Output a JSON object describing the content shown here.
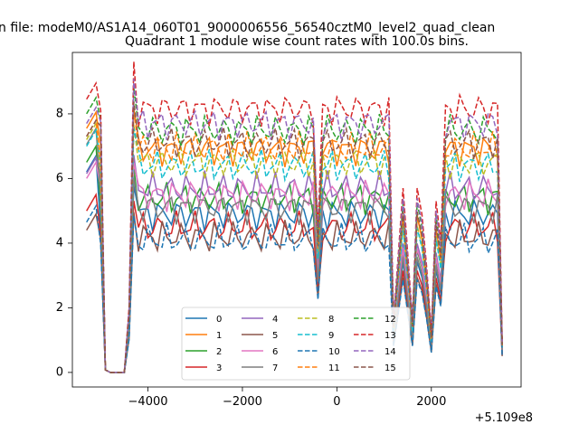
{
  "chart_data": {
    "type": "line",
    "suptitle": "n file: modeM0/AS1A14_060T01_9000006556_56540cztM0_level2_quad_clean",
    "title": "Quadrant 1 module wise count rates with 100.0s bins.",
    "xlabel": "",
    "ylabel": "",
    "x_offset_label": "+5.109e8",
    "xlim": [
      -5600,
      3900
    ],
    "ylim": [
      -0.45,
      9.9
    ],
    "xticks": [
      -4000,
      -2000,
      0,
      2000
    ],
    "xtick_labels": [
      "−4000",
      "−2000",
      "0",
      "2000"
    ],
    "yticks": [
      0,
      2,
      4,
      6,
      8
    ],
    "ytick_labels": [
      "0",
      "2",
      "4",
      "6",
      "8"
    ],
    "legend_location": "lower-center",
    "legend_columns": 4,
    "x": [
      -5300,
      -5200,
      -5100,
      -5000,
      -4900,
      -4800,
      -4700,
      -4600,
      -4500,
      -4400,
      -4300,
      -4200,
      -4100,
      -4000,
      -3900,
      -3800,
      -3700,
      -3600,
      -3500,
      -3400,
      -3300,
      -3200,
      -3100,
      -3000,
      -2900,
      -2800,
      -2700,
      -2600,
      -2500,
      -2400,
      -2300,
      -2200,
      -2100,
      -2000,
      -1900,
      -1800,
      -1700,
      -1600,
      -1500,
      -1400,
      -1300,
      -1200,
      -1100,
      -1000,
      -900,
      -800,
      -700,
      -600,
      -500,
      -400,
      -300,
      -200,
      -100,
      0,
      100,
      200,
      300,
      400,
      500,
      600,
      700,
      800,
      900,
      1000,
      1100,
      1200,
      1300,
      1400,
      1500,
      1600,
      1700,
      1800,
      1900,
      2000,
      2100,
      2200,
      2300,
      2400,
      2500,
      2600,
      2700,
      2800,
      2900,
      3000,
      3100,
      3200,
      3300,
      3400,
      3500
    ],
    "dips": {
      "-400": 0.55,
      "1200": 0.2,
      "1300": 0.45,
      "1400": 0.7,
      "1500": 0.45,
      "1600": 0.2,
      "1700": 0.7,
      "1800": 0.6,
      "1900": 0.4,
      "2000": 0.15,
      "2100": 0.65,
      "2200": 0.5,
      "3500": 0.12
    },
    "series": [
      {
        "name": "0",
        "color": "#1f77b4",
        "dash": false,
        "base": 4.9,
        "start": 6.2
      },
      {
        "name": "1",
        "color": "#ff7f0e",
        "dash": false,
        "base": 6.9,
        "start": 7.5
      },
      {
        "name": "2",
        "color": "#2ca02c",
        "dash": false,
        "base": 5.4,
        "start": 6.4
      },
      {
        "name": "3",
        "color": "#d62728",
        "dash": false,
        "base": 4.5,
        "start": 5.0
      },
      {
        "name": "4",
        "color": "#9467bd",
        "dash": false,
        "base": 5.7,
        "start": 6.1
      },
      {
        "name": "5",
        "color": "#8c564b",
        "dash": false,
        "base": 4.2,
        "start": 4.3
      },
      {
        "name": "6",
        "color": "#e377c2",
        "dash": false,
        "base": 5.5,
        "start": 6.0
      },
      {
        "name": "7",
        "color": "#7f7f7f",
        "dash": false,
        "base": 5.1,
        "start": 7.0
      },
      {
        "name": "8",
        "color": "#bcbd22",
        "dash": true,
        "base": 6.5,
        "start": 7.1
      },
      {
        "name": "9",
        "color": "#17becf",
        "dash": true,
        "base": 6.4,
        "start": 7.0
      },
      {
        "name": "10",
        "color": "#1f77b4",
        "dash": true,
        "base": 4.1,
        "start": 4.6
      },
      {
        "name": "11",
        "color": "#ff7f0e",
        "dash": true,
        "base": 6.95,
        "start": 7.2
      },
      {
        "name": "12",
        "color": "#2ca02c",
        "dash": true,
        "base": 7.5,
        "start": 8.0
      },
      {
        "name": "13",
        "color": "#d62728",
        "dash": true,
        "base": 8.15,
        "start": 8.4
      },
      {
        "name": "14",
        "color": "#9467bd",
        "dash": true,
        "base": 7.7,
        "start": 7.6
      },
      {
        "name": "15",
        "color": "#8c564b",
        "dash": true,
        "base": 7.1,
        "start": 7.3
      }
    ]
  }
}
